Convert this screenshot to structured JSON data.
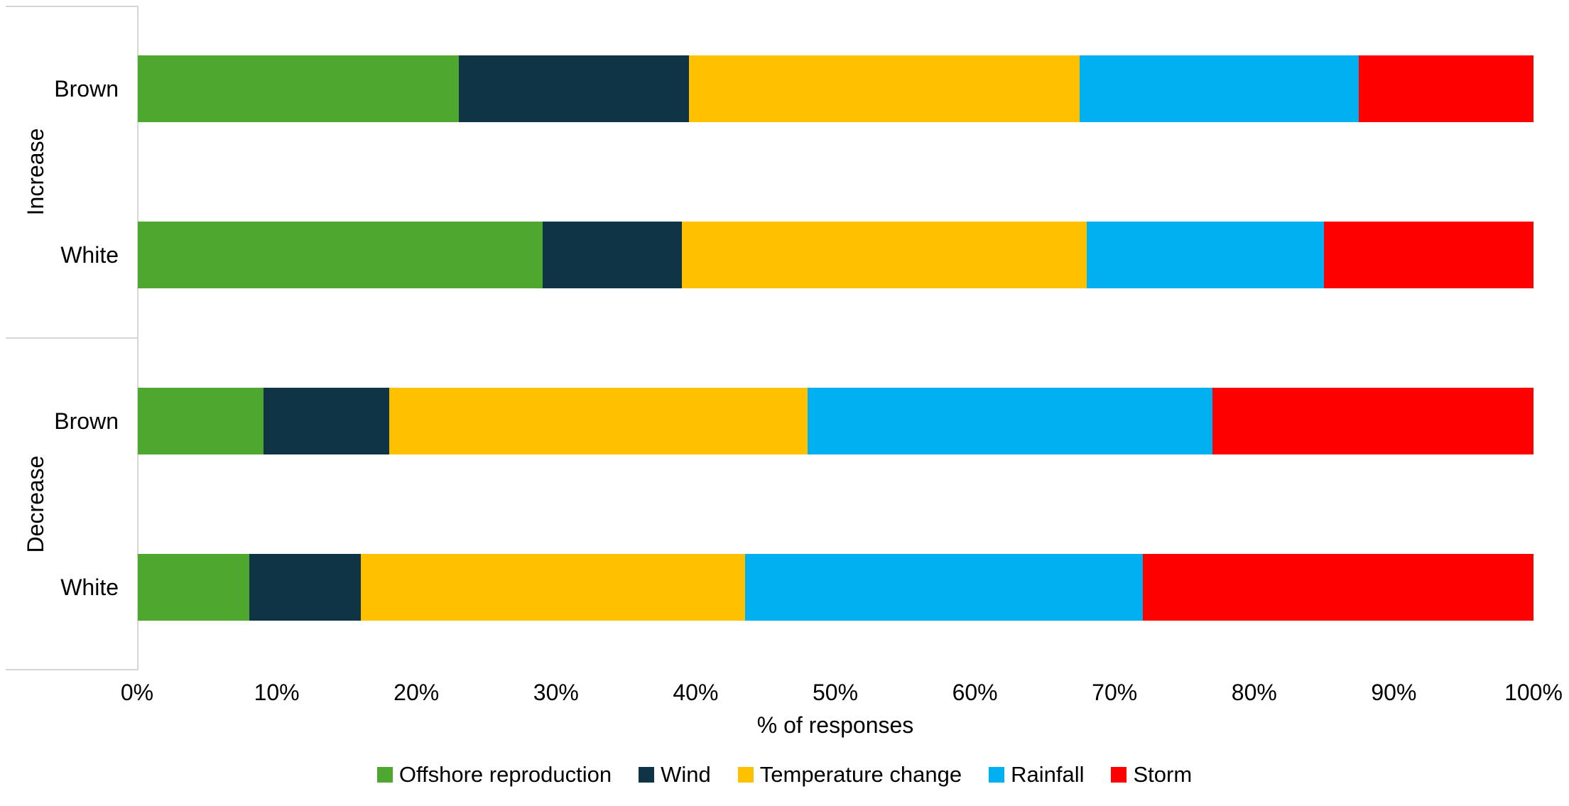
{
  "chart_data": {
    "type": "bar",
    "stacked": true,
    "stacked_100_percent": true,
    "orientation": "horizontal",
    "title": "",
    "xlabel": "% of responses",
    "ylabel": "",
    "xlim": [
      0,
      100
    ],
    "grid": false,
    "legend_position": "bottom",
    "x_ticks": [
      "0%",
      "10%",
      "20%",
      "30%",
      "40%",
      "50%",
      "60%",
      "70%",
      "80%",
      "90%",
      "100%"
    ],
    "groups": [
      {
        "label": "Increase"
      },
      {
        "label": "Decrease"
      }
    ],
    "categories": [
      {
        "group": "Increase",
        "label": "Brown"
      },
      {
        "group": "Increase",
        "label": "White"
      },
      {
        "group": "Decrease",
        "label": "Brown"
      },
      {
        "group": "Decrease",
        "label": "White"
      }
    ],
    "series": [
      {
        "name": "Offshore reproduction",
        "color": "#4EA72E",
        "values": [
          23,
          29,
          9,
          8
        ]
      },
      {
        "name": "Wind",
        "color": "#0F3445",
        "values": [
          16.5,
          10,
          9,
          8
        ]
      },
      {
        "name": "Temperature change",
        "color": "#FFC000",
        "values": [
          28,
          29,
          30,
          27.5
        ]
      },
      {
        "name": "Rainfall",
        "color": "#00B0F0",
        "values": [
          20,
          17,
          29,
          28.5
        ]
      },
      {
        "name": "Storm",
        "color": "#FF0000",
        "values": [
          12.5,
          15,
          23,
          28
        ]
      }
    ],
    "line_color": "#D6D6D6",
    "text_color": "#000000"
  }
}
